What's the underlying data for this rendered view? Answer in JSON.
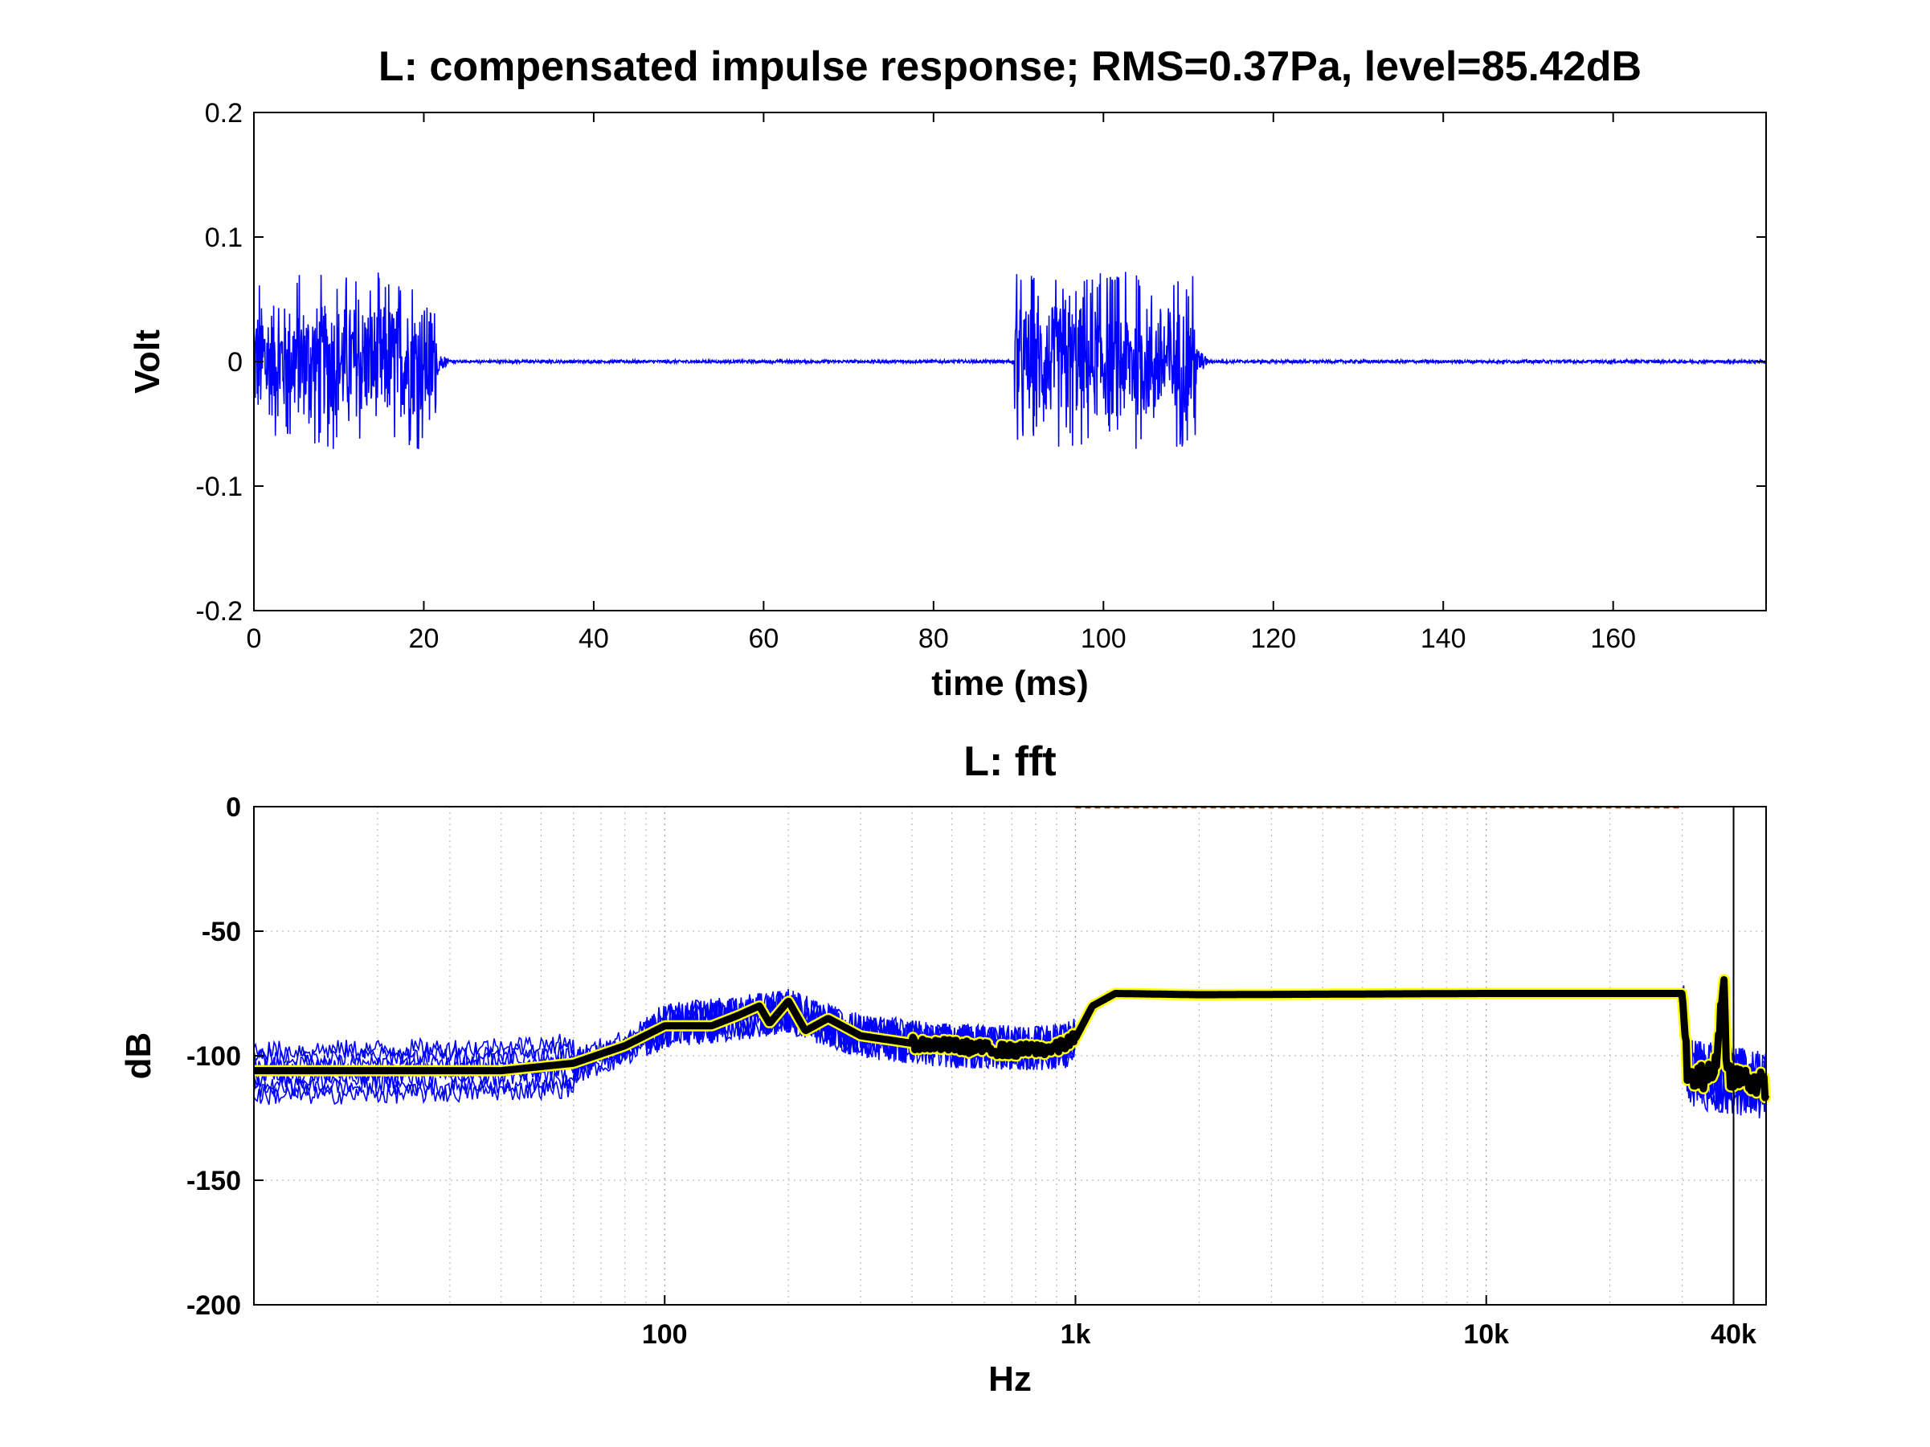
{
  "chart_data": [
    {
      "type": "line",
      "title": "L: compensated impulse response; RMS=0.37Pa, level=85.42dB",
      "xlabel": "time (ms)",
      "ylabel": "Volt",
      "xlim": [
        0,
        178
      ],
      "ylim": [
        -0.2,
        0.2
      ],
      "x_ticks": [
        0,
        20,
        40,
        60,
        80,
        100,
        120,
        140,
        160
      ],
      "x_tick_labels": [
        "0",
        "20",
        "40",
        "60",
        "80",
        "100",
        "120",
        "140",
        "160"
      ],
      "y_ticks": [
        0.2,
        0.1,
        0,
        -0.1,
        -0.2
      ],
      "y_tick_labels": [
        "0.2",
        "0.1",
        "0",
        "-0.1",
        "-0.2"
      ],
      "grid": false,
      "series": [
        {
          "color": "#0000ff",
          "bursts": [
            {
              "start_ms": 0,
              "end_ms": 21.5,
              "peak": 0.073,
              "trough": -0.072
            },
            {
              "start_ms": 89.5,
              "end_ms": 111,
              "peak": 0.072,
              "trough": -0.072
            }
          ],
          "baseline": 0
        }
      ]
    },
    {
      "type": "line",
      "title": "L: fft",
      "xlabel": "Hz",
      "ylabel": "dB",
      "x_scale": "log",
      "xlim": [
        10,
        48000
      ],
      "ylim": [
        -200,
        0
      ],
      "x_ticks": [
        100,
        1000,
        10000,
        40000
      ],
      "x_tick_labels": [
        "100",
        "1k",
        "10k",
        "40k"
      ],
      "y_ticks": [
        0,
        -50,
        -100,
        -150,
        -200
      ],
      "y_tick_labels": [
        "0",
        "-50",
        "-100",
        "-150",
        "-200"
      ],
      "grid": true,
      "series": [
        {
          "style": "thin traces",
          "color": "#0000ff",
          "points": [
            [
              10,
              -107
            ],
            [
              30,
              -106
            ],
            [
              60,
              -104
            ],
            [
              80,
              -97
            ],
            [
              100,
              -88
            ],
            [
              150,
              -85
            ],
            [
              200,
              -82
            ],
            [
              250,
              -88
            ],
            [
              300,
              -92
            ],
            [
              500,
              -96
            ],
            [
              800,
              -97
            ],
            [
              950,
              -96
            ],
            [
              1000,
              -92
            ],
            [
              1200,
              -75
            ],
            [
              30000,
              -75
            ],
            [
              31000,
              -107
            ],
            [
              48000,
              -112
            ]
          ]
        },
        {
          "style": "thick mean",
          "color": "#000000",
          "outline_color": "#ffff00",
          "points": [
            [
              10,
              -106
            ],
            [
              20,
              -106
            ],
            [
              40,
              -106
            ],
            [
              60,
              -103
            ],
            [
              80,
              -96
            ],
            [
              100,
              -88
            ],
            [
              130,
              -88
            ],
            [
              150,
              -84
            ],
            [
              170,
              -80
            ],
            [
              180,
              -87
            ],
            [
              200,
              -78
            ],
            [
              220,
              -90
            ],
            [
              250,
              -85
            ],
            [
              300,
              -92
            ],
            [
              400,
              -95
            ],
            [
              500,
              -96
            ],
            [
              700,
              -98
            ],
            [
              900,
              -97
            ],
            [
              1000,
              -93
            ],
            [
              1100,
              -80
            ],
            [
              1250,
              -75
            ],
            [
              2000,
              -75.5
            ],
            [
              10000,
              -75
            ],
            [
              30000,
              -75
            ],
            [
              31000,
              -110
            ],
            [
              36000,
              -107
            ],
            [
              38000,
              -68
            ],
            [
              38500,
              -107
            ],
            [
              48000,
              -112
            ]
          ]
        },
        {
          "style": "dashed",
          "color": "#ff0000",
          "points": [
            [
              1000,
              0
            ],
            [
              30000,
              0
            ]
          ]
        }
      ],
      "markers": [
        {
          "type": "vertical line",
          "x": 40000,
          "color": "#000000"
        }
      ]
    }
  ]
}
